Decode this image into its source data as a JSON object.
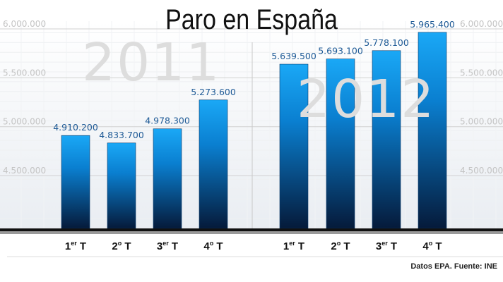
{
  "chart_data": {
    "type": "bar",
    "title": "Paro en España",
    "groups": [
      "2011",
      "2012"
    ],
    "categories": [
      "1er T",
      "2º T",
      "3er T",
      "4º T",
      "1er T",
      "2º T",
      "3er T",
      "4º T"
    ],
    "category_labels": [
      {
        "num": "1",
        "sup": "er"
      },
      {
        "num": "2",
        "sup": "o"
      },
      {
        "num": "3",
        "sup": "er"
      },
      {
        "num": "4",
        "sup": "o"
      },
      {
        "num": "1",
        "sup": "er"
      },
      {
        "num": "2",
        "sup": "o"
      },
      {
        "num": "3",
        "sup": "er"
      },
      {
        "num": "4",
        "sup": "o"
      }
    ],
    "values": [
      4910200,
      4833700,
      4978300,
      5273600,
      5639500,
      5693100,
      5778100,
      5965400
    ],
    "data_labels": [
      "4.910.200",
      "4.833.700",
      "4.978.300",
      "5.273.600",
      "5.639.500",
      "5.693.100",
      "5.778.100",
      "5.965.400"
    ],
    "yticks": [
      4500000,
      5000000,
      5500000,
      6000000
    ],
    "ytick_labels": [
      "4.500.000",
      "5.000.000",
      "5.500.000",
      "6.000.000"
    ],
    "ylim": [
      3960000,
      6000000
    ],
    "grid": true,
    "bar_color_top": "#19a6f4",
    "bar_color_bottom": "#061c3d",
    "label_color": "#1e5a96",
    "source": "Datos EPA. Fuente: INE"
  }
}
